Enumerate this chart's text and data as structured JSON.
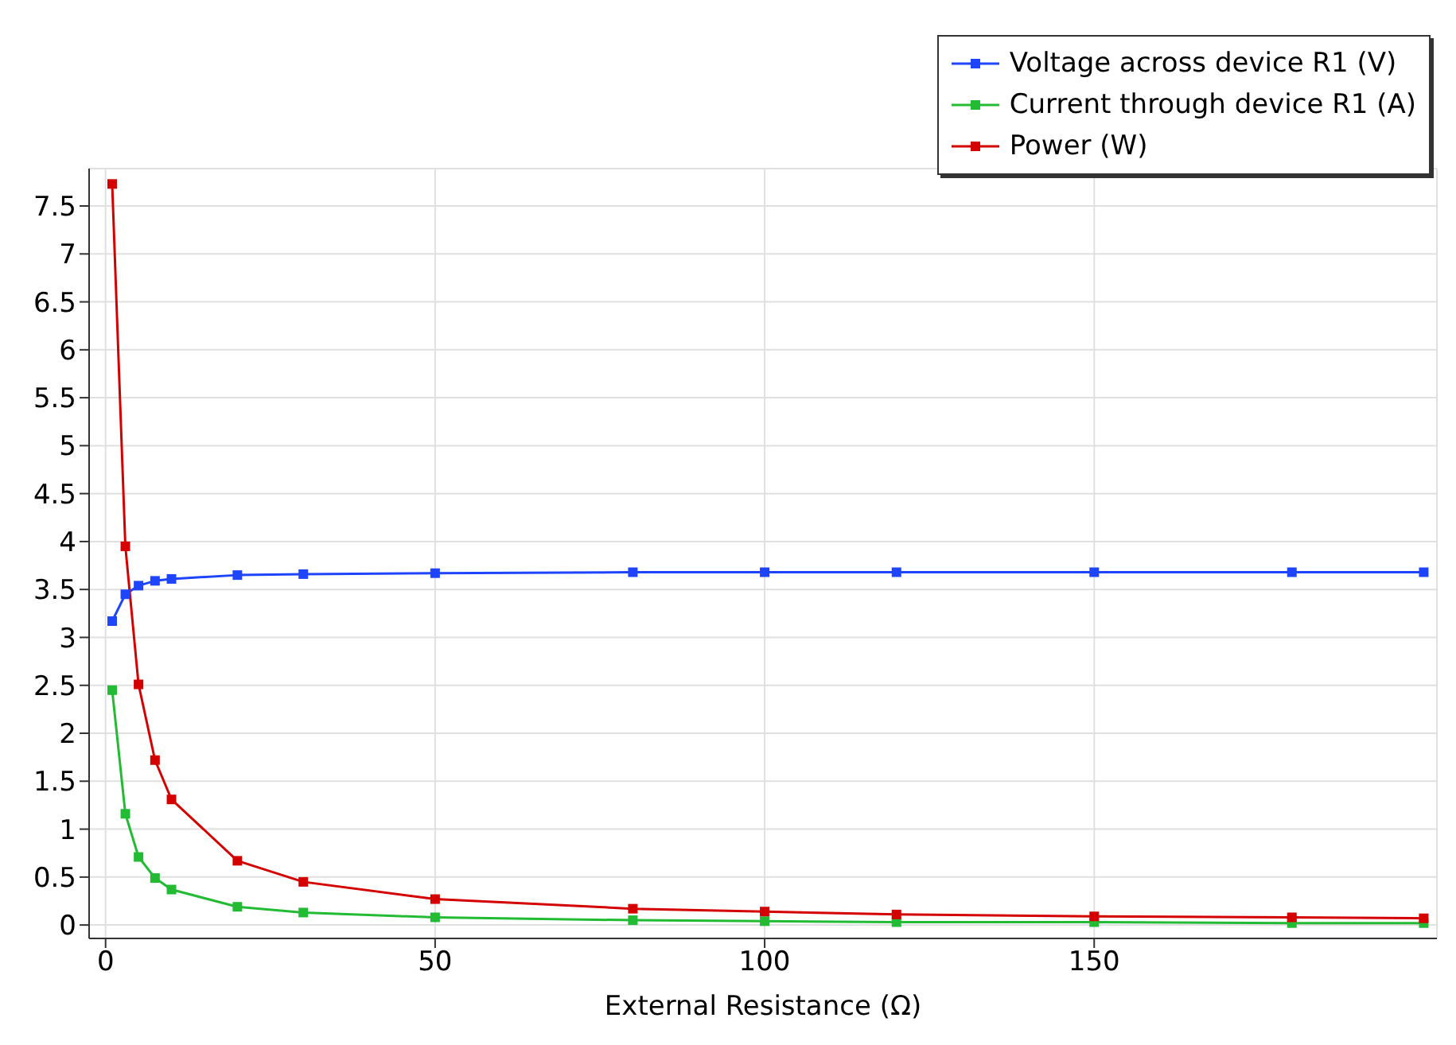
{
  "chart_data": {
    "type": "line",
    "xlabel": "External Resistance (Ω)",
    "x": [
      1,
      3,
      5,
      7.5,
      10,
      20,
      30,
      50,
      80,
      100,
      120,
      150,
      180,
      200
    ],
    "series": [
      {
        "name": "Voltage across device R1 (V)",
        "color": "#1f45fc",
        "values": [
          3.17,
          3.45,
          3.54,
          3.59,
          3.61,
          3.65,
          3.66,
          3.67,
          3.68,
          3.68,
          3.68,
          3.68,
          3.68,
          3.68
        ]
      },
      {
        "name": "Current through device R1 (A)",
        "color": "#22bb33",
        "values": [
          2.45,
          1.16,
          0.71,
          0.49,
          0.37,
          0.19,
          0.13,
          0.08,
          0.05,
          0.04,
          0.03,
          0.03,
          0.02,
          0.02
        ]
      },
      {
        "name": "Power (W)",
        "color": "#d40000",
        "values": [
          7.73,
          3.95,
          2.51,
          1.72,
          1.31,
          0.67,
          0.45,
          0.27,
          0.17,
          0.14,
          0.11,
          0.09,
          0.08,
          0.07
        ]
      }
    ],
    "xlim": [
      -2.5,
      202
    ],
    "xticks": [
      0,
      50,
      100,
      150
    ],
    "ylim": [
      -0.14,
      7.89
    ],
    "yticks": [
      0,
      0.5,
      1,
      1.5,
      2,
      2.5,
      3,
      3.5,
      4,
      4.5,
      5,
      5.5,
      6,
      6.5,
      7,
      7.5
    ],
    "grid": true,
    "legend": "top right",
    "marker": "square",
    "line_style": "solid"
  }
}
